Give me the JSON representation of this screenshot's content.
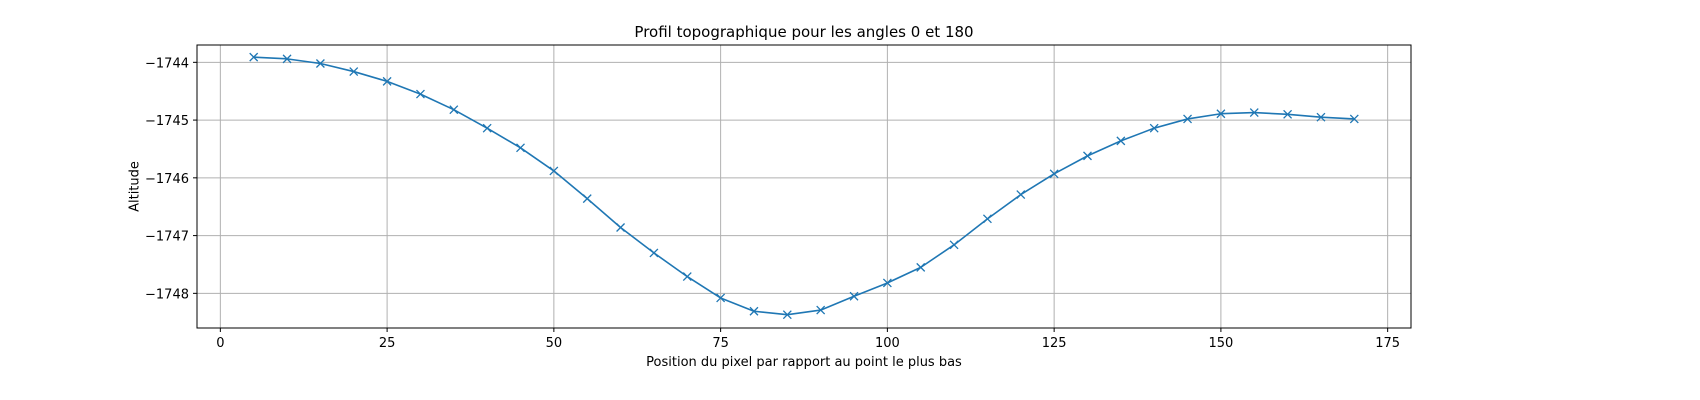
{
  "chart_data": {
    "type": "line",
    "title": "Profil topographique pour les angles 0 et 180",
    "xlabel": "Position du pixel par rapport au point le plus bas",
    "ylabel": "Altitude",
    "xlim": [
      -3.5,
      178.5
    ],
    "ylim": [
      -1748.6,
      -1743.7
    ],
    "xticks": [
      0,
      25,
      50,
      75,
      100,
      125,
      150,
      175
    ],
    "yticks": [
      -1744,
      -1745,
      -1746,
      -1747,
      -1748
    ],
    "ytick_labels": [
      "−1744",
      "−1745",
      "−1746",
      "−1747",
      "−1748"
    ],
    "grid": true,
    "marker": "x",
    "series": [
      {
        "color": "#1f77b4",
        "x": [
          5,
          10,
          15,
          20,
          25,
          30,
          35,
          40,
          45,
          50,
          55,
          60,
          65,
          70,
          75,
          80,
          85,
          90,
          95,
          100,
          105,
          110,
          115,
          120,
          125,
          130,
          135,
          140,
          145,
          150,
          155,
          160,
          165,
          170
        ],
        "y": [
          -1743.91,
          -1743.94,
          -1744.02,
          -1744.16,
          -1744.33,
          -1744.55,
          -1744.82,
          -1745.14,
          -1745.48,
          -1745.88,
          -1746.36,
          -1746.86,
          -1747.3,
          -1747.71,
          -1748.08,
          -1748.31,
          -1748.37,
          -1748.29,
          -1748.05,
          -1747.82,
          -1747.55,
          -1747.16,
          -1746.71,
          -1746.29,
          -1745.93,
          -1745.62,
          -1745.36,
          -1745.14,
          -1744.98,
          -1744.89,
          -1744.87,
          -1744.9,
          -1744.95,
          -1744.98
        ]
      }
    ]
  }
}
